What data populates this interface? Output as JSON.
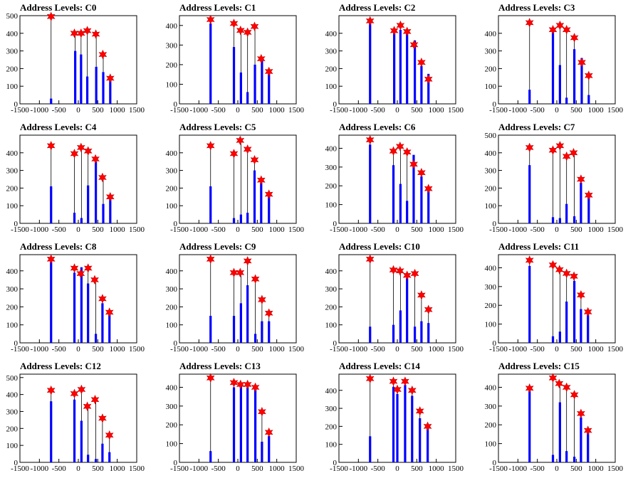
{
  "chart_data": [
    {
      "type": "bar",
      "title": "Address Levels: C0",
      "xlim": [
        -1500,
        1500
      ],
      "ylim": [
        0,
        500
      ],
      "xticks": [
        -1500,
        -1000,
        -500,
        0,
        500,
        1000,
        1500
      ],
      "yticks": [
        0,
        100,
        200,
        300,
        400,
        500
      ],
      "bars": [
        [
          -700,
          30
        ],
        [
          -80,
          300
        ],
        [
          70,
          280
        ],
        [
          230,
          155
        ],
        [
          460,
          210
        ],
        [
          640,
          180
        ],
        [
          820,
          140
        ]
      ],
      "peaks": [
        [
          -700,
          495
        ],
        [
          -100,
          400
        ],
        [
          70,
          400
        ],
        [
          230,
          415
        ],
        [
          450,
          395
        ],
        [
          630,
          280
        ],
        [
          820,
          145
        ]
      ]
    },
    {
      "type": "bar",
      "title": "Address Levels: C1",
      "xlim": [
        -1500,
        1500
      ],
      "ylim": [
        0,
        450
      ],
      "xticks": [
        -1500,
        -1000,
        -500,
        0,
        500,
        1000,
        1500
      ],
      "yticks": [
        0,
        100,
        200,
        300,
        400
      ],
      "bars": [
        [
          -700,
          410
        ],
        [
          -100,
          290
        ],
        [
          80,
          160
        ],
        [
          250,
          60
        ],
        [
          440,
          200
        ],
        [
          620,
          220
        ],
        [
          800,
          160
        ]
      ],
      "peaks": [
        [
          -700,
          430
        ],
        [
          -100,
          410
        ],
        [
          70,
          375
        ],
        [
          250,
          365
        ],
        [
          430,
          395
        ],
        [
          600,
          230
        ],
        [
          800,
          165
        ]
      ]
    },
    {
      "type": "bar",
      "title": "Address Levels: C2",
      "xlim": [
        -1500,
        1500
      ],
      "ylim": [
        0,
        500
      ],
      "xticks": [
        -1500,
        -1000,
        -500,
        0,
        500,
        1000,
        1500
      ],
      "yticks": [
        0,
        100,
        200,
        300,
        400
      ],
      "bars": [
        [
          -700,
          460
        ],
        [
          -80,
          400
        ],
        [
          80,
          420
        ],
        [
          250,
          400
        ],
        [
          450,
          360
        ],
        [
          620,
          215
        ],
        [
          800,
          170
        ]
      ],
      "peaks": [
        [
          -700,
          470
        ],
        [
          -80,
          415
        ],
        [
          80,
          445
        ],
        [
          250,
          410
        ],
        [
          430,
          335
        ],
        [
          620,
          235
        ],
        [
          800,
          140
        ]
      ]
    },
    {
      "type": "bar",
      "title": "Address Levels: C3",
      "xlim": [
        -1500,
        1500
      ],
      "ylim": [
        0,
        500
      ],
      "xticks": [
        -1500,
        -1000,
        -500,
        0,
        500,
        1000,
        1500
      ],
      "yticks": [
        0,
        100,
        200,
        300,
        400
      ],
      "bars": [
        [
          -700,
          80
        ],
        [
          -100,
          420
        ],
        [
          80,
          220
        ],
        [
          250,
          35
        ],
        [
          450,
          310
        ],
        [
          640,
          260
        ],
        [
          820,
          50
        ]
      ],
      "peaks": [
        [
          -700,
          460
        ],
        [
          -100,
          420
        ],
        [
          80,
          445
        ],
        [
          250,
          420
        ],
        [
          450,
          375
        ],
        [
          640,
          235
        ],
        [
          820,
          160
        ]
      ]
    },
    {
      "type": "bar",
      "title": "Address Levels: C4",
      "xlim": [
        -1500,
        1500
      ],
      "ylim": [
        0,
        500
      ],
      "xticks": [
        -1500,
        -1000,
        -500,
        0,
        500,
        1000,
        1500
      ],
      "yticks": [
        0,
        100,
        200,
        300,
        400
      ],
      "bars": [
        [
          -700,
          210
        ],
        [
          -100,
          60
        ],
        [
          80,
          30
        ],
        [
          250,
          215
        ],
        [
          450,
          350
        ],
        [
          640,
          110
        ],
        [
          820,
          140
        ]
      ],
      "peaks": [
        [
          -700,
          440
        ],
        [
          -100,
          395
        ],
        [
          70,
          430
        ],
        [
          250,
          410
        ],
        [
          440,
          365
        ],
        [
          620,
          260
        ],
        [
          820,
          150
        ]
      ]
    },
    {
      "type": "bar",
      "title": "Address Levels: C5",
      "xlim": [
        -1500,
        1500
      ],
      "ylim": [
        0,
        500
      ],
      "xticks": [
        -1500,
        -1000,
        -500,
        0,
        500,
        1000,
        1500
      ],
      "yticks": [
        0,
        100,
        200,
        300,
        400
      ],
      "bars": [
        [
          -700,
          210
        ],
        [
          -100,
          30
        ],
        [
          80,
          50
        ],
        [
          250,
          60
        ],
        [
          430,
          300
        ],
        [
          600,
          230
        ],
        [
          800,
          160
        ]
      ],
      "peaks": [
        [
          -700,
          440
        ],
        [
          -100,
          395
        ],
        [
          60,
          470
        ],
        [
          250,
          420
        ],
        [
          430,
          360
        ],
        [
          600,
          245
        ],
        [
          800,
          165
        ]
      ]
    },
    {
      "type": "bar",
      "title": "Address Levels: C6",
      "xlim": [
        -1500,
        1500
      ],
      "ylim": [
        0,
        470
      ],
      "xticks": [
        -1500,
        -1000,
        -500,
        0,
        500,
        1000,
        1500
      ],
      "yticks": [
        0,
        100,
        200,
        300,
        400
      ],
      "bars": [
        [
          -700,
          420
        ],
        [
          -100,
          310
        ],
        [
          80,
          210
        ],
        [
          250,
          120
        ],
        [
          420,
          365
        ],
        [
          620,
          250
        ],
        [
          800,
          180
        ]
      ],
      "peaks": [
        [
          -700,
          445
        ],
        [
          -100,
          385
        ],
        [
          70,
          410
        ],
        [
          250,
          380
        ],
        [
          420,
          315
        ],
        [
          620,
          270
        ],
        [
          800,
          185
        ]
      ]
    },
    {
      "type": "bar",
      "title": "Address Levels: C7",
      "xlim": [
        -1500,
        1500
      ],
      "ylim": [
        0,
        500
      ],
      "xticks": [
        -1500,
        -1000,
        -500,
        0,
        500,
        1000,
        1500
      ],
      "yticks": [
        0,
        100,
        200,
        300,
        400,
        500
      ],
      "bars": [
        [
          -700,
          330
        ],
        [
          -100,
          35
        ],
        [
          80,
          30
        ],
        [
          250,
          110
        ],
        [
          450,
          40
        ],
        [
          620,
          230
        ],
        [
          820,
          150
        ]
      ],
      "peaks": [
        [
          -700,
          430
        ],
        [
          -100,
          415
        ],
        [
          80,
          440
        ],
        [
          250,
          380
        ],
        [
          430,
          400
        ],
        [
          620,
          250
        ],
        [
          820,
          160
        ]
      ]
    },
    {
      "type": "bar",
      "title": "Address Levels: C8",
      "xlim": [
        -1500,
        1500
      ],
      "ylim": [
        0,
        490
      ],
      "xticks": [
        -1500,
        -1000,
        -500,
        0,
        500,
        1000,
        1500
      ],
      "yticks": [
        0,
        100,
        200,
        300,
        400
      ],
      "bars": [
        [
          -700,
          450
        ],
        [
          -100,
          390
        ],
        [
          80,
          420
        ],
        [
          250,
          330
        ],
        [
          450,
          50
        ],
        [
          620,
          220
        ],
        [
          800,
          170
        ]
      ],
      "peaks": [
        [
          -700,
          465
        ],
        [
          -100,
          415
        ],
        [
          60,
          385
        ],
        [
          250,
          415
        ],
        [
          420,
          350
        ],
        [
          620,
          245
        ],
        [
          800,
          170
        ]
      ]
    },
    {
      "type": "bar",
      "title": "Address Levels: C9",
      "xlim": [
        -1500,
        1500
      ],
      "ylim": [
        0,
        490
      ],
      "xticks": [
        -1500,
        -1000,
        -500,
        0,
        500,
        1000,
        1500
      ],
      "yticks": [
        0,
        100,
        200,
        300,
        400
      ],
      "bars": [
        [
          -700,
          150
        ],
        [
          -100,
          150
        ],
        [
          80,
          220
        ],
        [
          250,
          320
        ],
        [
          450,
          50
        ],
        [
          620,
          120
        ],
        [
          800,
          120
        ]
      ],
      "peaks": [
        [
          -700,
          465
        ],
        [
          -100,
          390
        ],
        [
          60,
          390
        ],
        [
          250,
          455
        ],
        [
          450,
          355
        ],
        [
          620,
          240
        ],
        [
          800,
          165
        ]
      ]
    },
    {
      "type": "bar",
      "title": "Address Levels: C10",
      "xlim": [
        -1500,
        1500
      ],
      "ylim": [
        0,
        490
      ],
      "xticks": [
        -1500,
        -1000,
        -500,
        0,
        500,
        1000,
        1500
      ],
      "yticks": [
        0,
        100,
        200,
        300,
        400
      ],
      "bars": [
        [
          -700,
          90
        ],
        [
          -100,
          100
        ],
        [
          80,
          180
        ],
        [
          250,
          360
        ],
        [
          450,
          90
        ],
        [
          620,
          120
        ],
        [
          800,
          110
        ]
      ],
      "peaks": [
        [
          -700,
          465
        ],
        [
          -100,
          405
        ],
        [
          70,
          400
        ],
        [
          250,
          375
        ],
        [
          450,
          385
        ],
        [
          620,
          265
        ],
        [
          800,
          185
        ]
      ]
    },
    {
      "type": "bar",
      "title": "Address Levels: C11",
      "xlim": [
        -1500,
        1500
      ],
      "ylim": [
        0,
        470
      ],
      "xticks": [
        -1500,
        -1000,
        -500,
        0,
        500,
        1000,
        1500
      ],
      "yticks": [
        0,
        100,
        200,
        300,
        400
      ],
      "bars": [
        [
          -700,
          410
        ],
        [
          -100,
          35
        ],
        [
          80,
          60
        ],
        [
          250,
          220
        ],
        [
          450,
          330
        ],
        [
          620,
          180
        ],
        [
          800,
          150
        ]
      ],
      "peaks": [
        [
          -700,
          440
        ],
        [
          -100,
          415
        ],
        [
          70,
          390
        ],
        [
          250,
          370
        ],
        [
          440,
          355
        ],
        [
          620,
          255
        ],
        [
          800,
          165
        ]
      ]
    },
    {
      "type": "bar",
      "title": "Address Levels: C12",
      "xlim": [
        -1500,
        1500
      ],
      "ylim": [
        0,
        520
      ],
      "xticks": [
        -1500,
        -1000,
        -500,
        0,
        500,
        1000,
        1500
      ],
      "yticks": [
        0,
        100,
        200,
        300,
        400,
        500
      ],
      "bars": [
        [
          -700,
          360
        ],
        [
          -100,
          370
        ],
        [
          80,
          245
        ],
        [
          250,
          45
        ],
        [
          450,
          20
        ],
        [
          620,
          110
        ],
        [
          800,
          60
        ]
      ],
      "peaks": [
        [
          -700,
          425
        ],
        [
          -100,
          405
        ],
        [
          80,
          430
        ],
        [
          230,
          330
        ],
        [
          430,
          370
        ],
        [
          620,
          260
        ],
        [
          800,
          160
        ]
      ]
    },
    {
      "type": "bar",
      "title": "Address Levels: C13",
      "xlim": [
        -1500,
        1500
      ],
      "ylim": [
        0,
        470
      ],
      "xticks": [
        -1500,
        -1000,
        -500,
        0,
        500,
        1000,
        1500
      ],
      "yticks": [
        0,
        100,
        200,
        300,
        400
      ],
      "bars": [
        [
          -700,
          60
        ],
        [
          -100,
          400
        ],
        [
          80,
          410
        ],
        [
          250,
          400
        ],
        [
          450,
          390
        ],
        [
          620,
          110
        ],
        [
          800,
          140
        ]
      ],
      "peaks": [
        [
          -700,
          450
        ],
        [
          -100,
          425
        ],
        [
          70,
          415
        ],
        [
          250,
          415
        ],
        [
          450,
          400
        ],
        [
          620,
          270
        ],
        [
          800,
          160
        ]
      ]
    },
    {
      "type": "bar",
      "title": "Address Levels: C14",
      "xlim": [
        -1500,
        1500
      ],
      "ylim": [
        0,
        490
      ],
      "xticks": [
        -1500,
        -1000,
        -500,
        0,
        500,
        1000,
        1500
      ],
      "yticks": [
        0,
        100,
        200,
        300,
        400
      ],
      "bars": [
        [
          -700,
          145
        ],
        [
          -100,
          420
        ],
        [
          0,
          380
        ],
        [
          200,
          430
        ],
        [
          380,
          370
        ],
        [
          580,
          245
        ],
        [
          780,
          190
        ]
      ],
      "peaks": [
        [
          -700,
          465
        ],
        [
          -100,
          450
        ],
        [
          0,
          405
        ],
        [
          200,
          450
        ],
        [
          380,
          400
        ],
        [
          580,
          285
        ],
        [
          780,
          200
        ]
      ]
    },
    {
      "type": "bar",
      "title": "Address Levels: C15",
      "xlim": [
        -1500,
        1500
      ],
      "ylim": [
        0,
        470
      ],
      "xticks": [
        -1500,
        -1000,
        -500,
        0,
        500,
        1000,
        1500
      ],
      "yticks": [
        0,
        100,
        200,
        300,
        400
      ],
      "bars": [
        [
          -700,
          380
        ],
        [
          -100,
          40
        ],
        [
          80,
          320
        ],
        [
          250,
          60
        ],
        [
          450,
          30
        ],
        [
          620,
          240
        ],
        [
          800,
          160
        ]
      ],
      "peaks": [
        [
          -700,
          395
        ],
        [
          -100,
          450
        ],
        [
          60,
          420
        ],
        [
          250,
          400
        ],
        [
          450,
          360
        ],
        [
          620,
          260
        ],
        [
          800,
          170
        ]
      ]
    }
  ],
  "colors": {
    "bar": "#0000ff",
    "marker_fill": "#ff0000",
    "marker_edge": "#cc0000",
    "axis": "#000000"
  }
}
